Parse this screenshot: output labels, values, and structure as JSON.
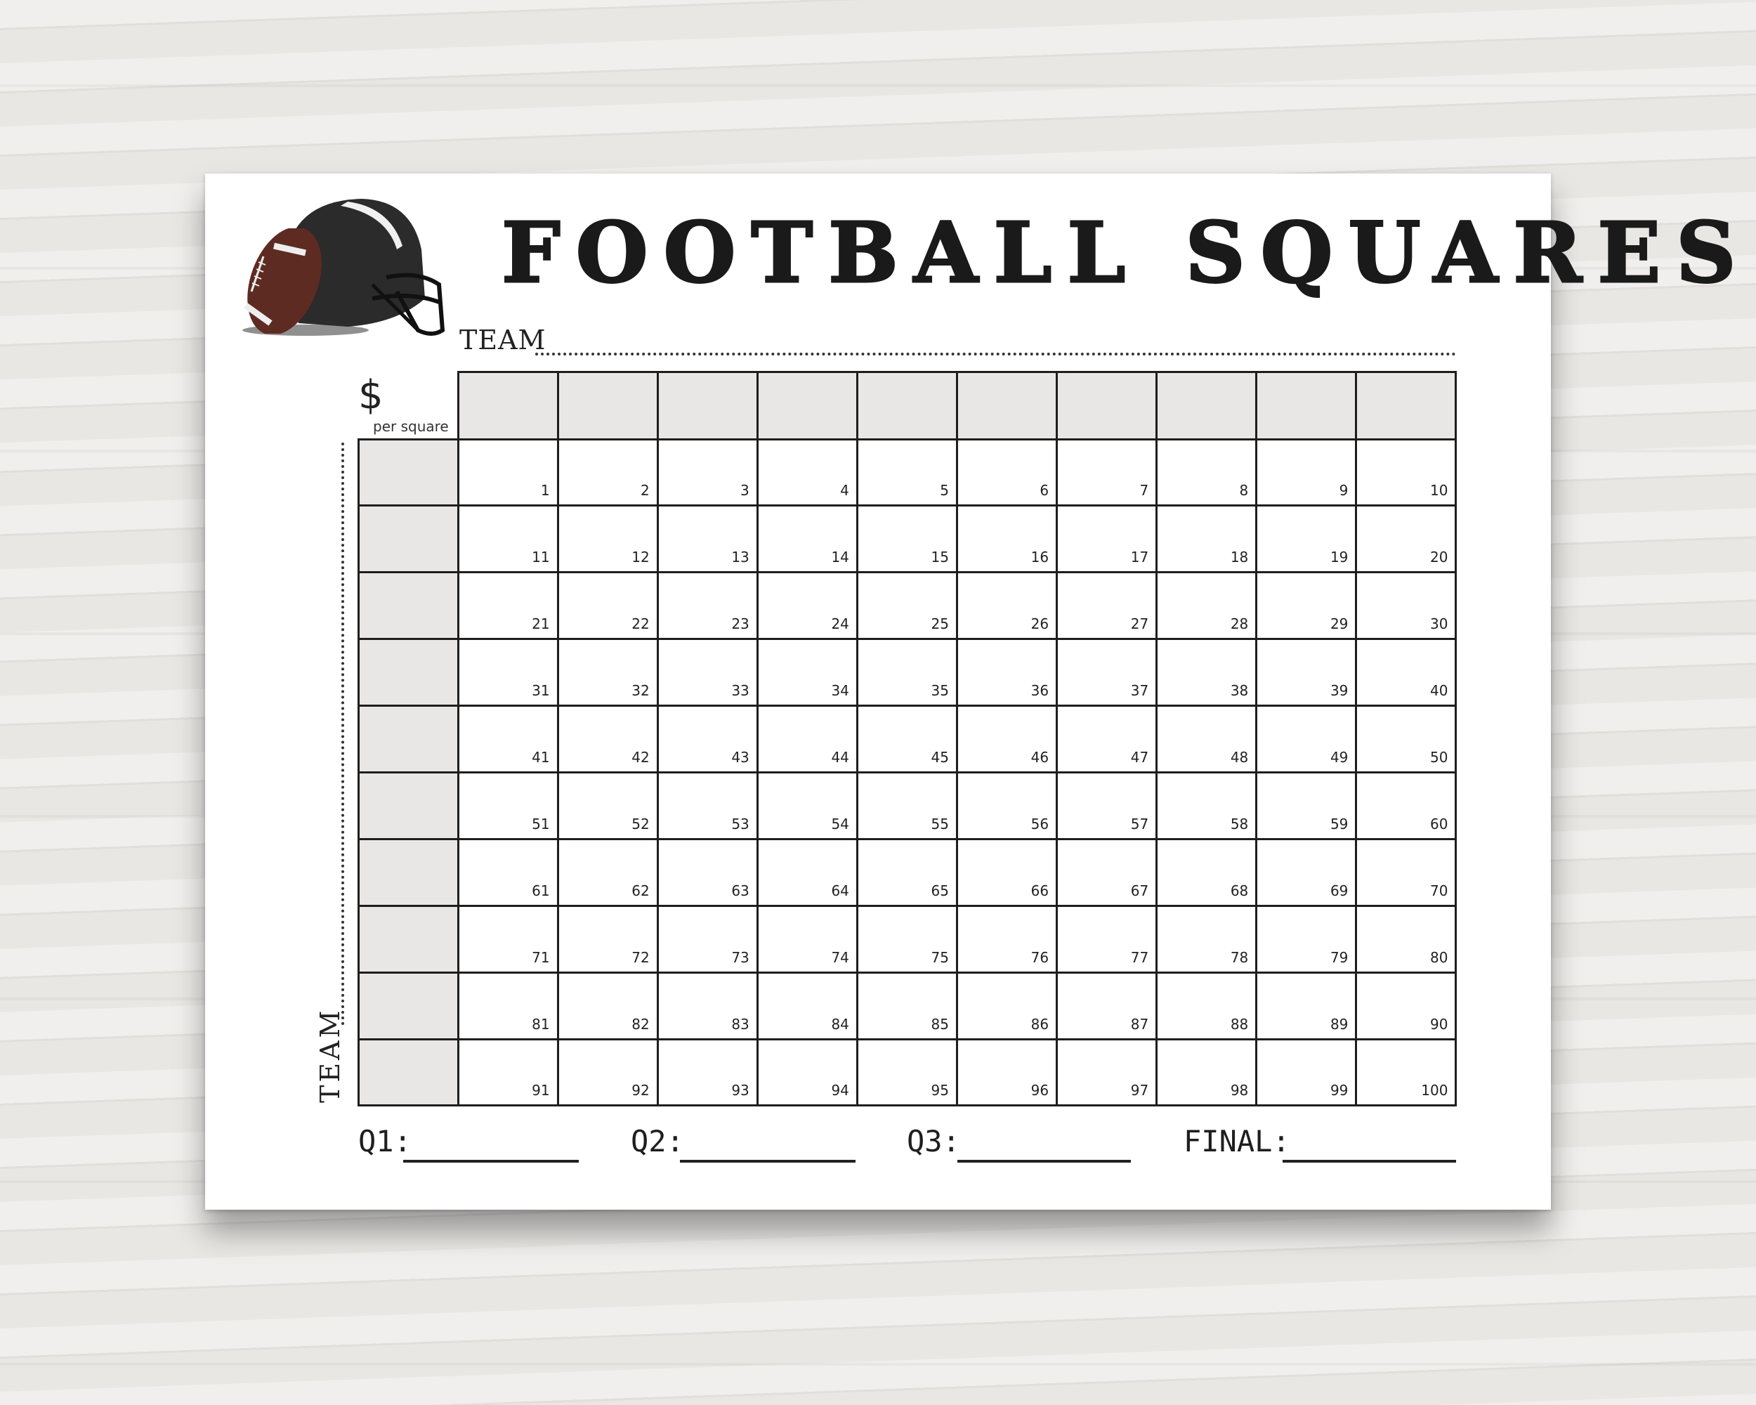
{
  "title": "FOOTBALL SQUARES",
  "top_team_label": "TEAM",
  "side_team_label": "TEAM",
  "price": {
    "symbol": "$",
    "caption": "per square"
  },
  "grid": {
    "columns": 10,
    "rows": 10,
    "cells": [
      "1",
      "2",
      "3",
      "4",
      "5",
      "6",
      "7",
      "8",
      "9",
      "10",
      "11",
      "12",
      "13",
      "14",
      "15",
      "16",
      "17",
      "18",
      "19",
      "20",
      "21",
      "22",
      "23",
      "24",
      "25",
      "26",
      "27",
      "28",
      "29",
      "30",
      "31",
      "32",
      "33",
      "34",
      "35",
      "36",
      "37",
      "38",
      "39",
      "40",
      "41",
      "42",
      "43",
      "44",
      "45",
      "46",
      "47",
      "48",
      "49",
      "50",
      "51",
      "52",
      "53",
      "54",
      "55",
      "56",
      "57",
      "58",
      "59",
      "60",
      "61",
      "62",
      "63",
      "64",
      "65",
      "66",
      "67",
      "68",
      "69",
      "70",
      "71",
      "72",
      "73",
      "74",
      "75",
      "76",
      "77",
      "78",
      "79",
      "80",
      "81",
      "82",
      "83",
      "84",
      "85",
      "86",
      "87",
      "88",
      "89",
      "90",
      "91",
      "92",
      "93",
      "94",
      "95",
      "96",
      "97",
      "98",
      "99",
      "100"
    ],
    "header_fill": "#e9e7e6"
  },
  "scores": [
    {
      "label": "Q1:"
    },
    {
      "label": "Q2:"
    },
    {
      "label": "Q3:"
    },
    {
      "label": "FINAL:"
    }
  ],
  "colors": {
    "ball": "#5e2b22",
    "helmet": "#2a2a2a",
    "ink": "#1e1e1e"
  },
  "icons": [
    "football-helmet-icon",
    "football-icon"
  ]
}
